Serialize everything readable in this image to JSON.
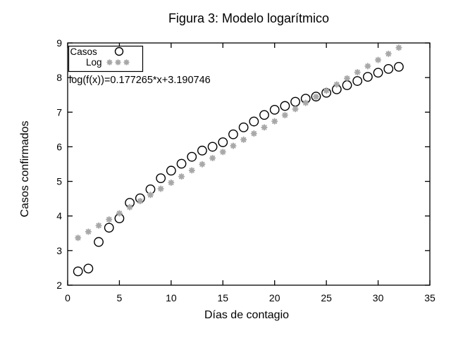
{
  "title": "Figura 3: Modelo logarítmico",
  "annotation": "log(f(x))=0.177265*x+3.190746",
  "legend": {
    "position": "top-left",
    "items": [
      {
        "label": "Casos",
        "marker": "circle-icon"
      },
      {
        "label": "Log",
        "marker": "asterisk-icon"
      }
    ]
  },
  "colors": {
    "background": "#ffffff",
    "axis": "#000000",
    "text": "#000000",
    "casos_marker": "#000000",
    "log_marker": "#a8a8a8"
  },
  "chart_data": {
    "type": "scatter",
    "title": "Figura 3: Modelo logarítmico",
    "xlabel": "Días de contagio",
    "ylabel": "Casos confirmados",
    "xlim": [
      0,
      35
    ],
    "ylim": [
      2,
      9
    ],
    "xticks": [
      0,
      5,
      10,
      15,
      20,
      25,
      30,
      35
    ],
    "yticks": [
      2,
      3,
      4,
      5,
      6,
      7,
      8,
      9
    ],
    "grid": false,
    "legend_position": "top-left",
    "annotation": "log(f(x))=0.177265*x+3.190746",
    "x": [
      1,
      2,
      3,
      4,
      5,
      6,
      7,
      8,
      9,
      10,
      11,
      12,
      13,
      14,
      15,
      16,
      17,
      18,
      19,
      20,
      21,
      22,
      23,
      24,
      25,
      26,
      27,
      28,
      29,
      30,
      31,
      32
    ],
    "series": [
      {
        "name": "Casos",
        "marker": "circle",
        "color": "#000000",
        "values": [
          2.4,
          2.48,
          3.25,
          3.66,
          3.93,
          4.38,
          4.51,
          4.77,
          5.09,
          5.31,
          5.51,
          5.71,
          5.89,
          6.0,
          6.13,
          6.36,
          6.56,
          6.73,
          6.92,
          7.07,
          7.18,
          7.3,
          7.39,
          7.45,
          7.56,
          7.66,
          7.78,
          7.9,
          8.02,
          8.14,
          8.25,
          8.31
        ]
      },
      {
        "name": "Log",
        "marker": "asterisk",
        "color": "#a8a8a8",
        "fit_equation": "log(f(x))=0.177265*x+3.190746",
        "values": [
          3.368,
          3.545,
          3.723,
          3.9,
          4.077,
          4.254,
          4.432,
          4.609,
          4.786,
          4.963,
          5.141,
          5.318,
          5.495,
          5.673,
          5.85,
          6.027,
          6.204,
          6.382,
          6.559,
          6.736,
          6.913,
          7.091,
          7.268,
          7.445,
          7.622,
          7.8,
          7.977,
          8.154,
          8.331,
          8.509,
          8.686,
          8.863
        ]
      }
    ]
  }
}
